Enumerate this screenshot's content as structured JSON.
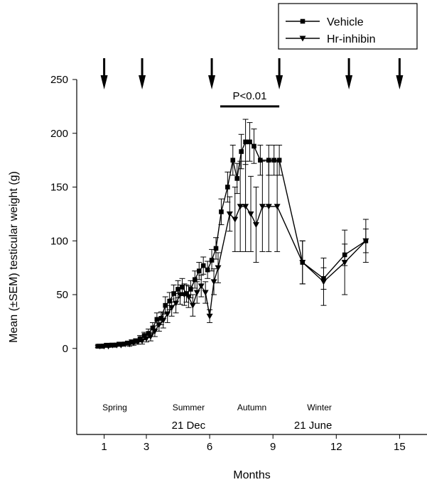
{
  "chart_data": {
    "type": "line",
    "xlabel": "Months",
    "ylabel": "Mean (±SEM) testicular weight (g)",
    "xlim": [
      -0.3,
      16.3
    ],
    "ylim": [
      -80,
      250
    ],
    "x_ticks": [
      1,
      3,
      6,
      9,
      12,
      15
    ],
    "y_ticks": [
      0,
      50,
      100,
      150,
      200,
      250
    ],
    "grid": false,
    "legend": {
      "placement": "top-right",
      "entries": [
        "Vehicle",
        "Hr-inhibin"
      ]
    },
    "treatment_arrows_x": [
      1,
      2.8,
      6.1,
      9.3,
      12.6,
      15
    ],
    "annotation": {
      "text": "P<0.01",
      "x_start": 6.5,
      "x_end": 9.3,
      "y": 225
    },
    "season_labels": [
      {
        "text": "Spring",
        "x": 1.5
      },
      {
        "text": "Summer",
        "x": 5.0
      },
      {
        "text": "Autumn",
        "x": 8.0
      },
      {
        "text": "Winter",
        "x": 11.2
      }
    ],
    "date_labels": [
      {
        "text": "21 Dec",
        "x": 5.0
      },
      {
        "text": "21 June",
        "x": 10.9
      }
    ],
    "series": [
      {
        "name": "Vehicle",
        "marker": "square",
        "x": [
          0.7,
          0.9,
          1.1,
          1.3,
          1.5,
          1.7,
          1.9,
          2.1,
          2.3,
          2.5,
          2.7,
          2.9,
          3.1,
          3.3,
          3.5,
          3.7,
          3.9,
          4.1,
          4.3,
          4.5,
          4.7,
          4.9,
          5.1,
          5.3,
          5.5,
          5.7,
          5.9,
          6.1,
          6.3,
          6.55,
          6.85,
          7.1,
          7.3,
          7.5,
          7.7,
          7.9,
          8.1,
          8.4,
          8.8,
          9.05,
          9.3,
          10.4,
          11.4,
          12.4,
          13.4
        ],
        "y": [
          2,
          2,
          3,
          3,
          3,
          4,
          4,
          5,
          6,
          7,
          9,
          12,
          14,
          19,
          27,
          28,
          40,
          44,
          51,
          55,
          57,
          51,
          55,
          64,
          72,
          77,
          73,
          82,
          93,
          127,
          150,
          175,
          158,
          183,
          192,
          192,
          188,
          175,
          175,
          175,
          175,
          80,
          65,
          87,
          100
        ],
        "err": [
          1,
          1,
          1,
          1,
          1,
          1,
          1,
          1,
          2,
          2,
          3,
          3,
          4,
          5,
          6,
          6,
          8,
          8,
          8,
          8,
          8,
          8,
          8,
          8,
          8,
          8,
          8,
          10,
          10,
          12,
          14,
          14,
          14,
          16,
          21,
          18,
          16,
          14,
          14,
          14,
          14,
          20,
          10,
          10,
          11
        ]
      },
      {
        "name": "Hr-inhibin",
        "marker": "triangle-down",
        "x": [
          0.8,
          1.0,
          1.2,
          1.4,
          1.6,
          1.8,
          2.0,
          2.2,
          2.4,
          2.6,
          2.8,
          3.0,
          3.2,
          3.4,
          3.6,
          3.8,
          4.0,
          4.2,
          4.4,
          4.6,
          4.8,
          5.0,
          5.2,
          5.4,
          5.6,
          5.8,
          6.0,
          6.2,
          6.4,
          6.95,
          7.2,
          7.45,
          7.7,
          7.95,
          8.2,
          8.5,
          8.8,
          9.2,
          10.4,
          11.4,
          12.4,
          13.4
        ],
        "y": [
          2,
          2,
          2,
          3,
          3,
          3,
          4,
          4,
          5,
          6,
          7,
          9,
          11,
          16,
          22,
          26,
          32,
          38,
          42,
          50,
          50,
          48,
          40,
          52,
          58,
          52,
          30,
          62,
          75,
          125,
          120,
          132,
          132,
          125,
          115,
          132,
          132,
          132,
          80,
          62,
          80,
          100
        ],
        "err": [
          1,
          1,
          1,
          1,
          1,
          1,
          1,
          2,
          2,
          2,
          3,
          3,
          4,
          5,
          6,
          7,
          8,
          8,
          9,
          9,
          10,
          10,
          10,
          10,
          10,
          10,
          6,
          12,
          14,
          16,
          30,
          42,
          42,
          35,
          35,
          42,
          42,
          42,
          20,
          22,
          30,
          20
        ]
      }
    ]
  }
}
